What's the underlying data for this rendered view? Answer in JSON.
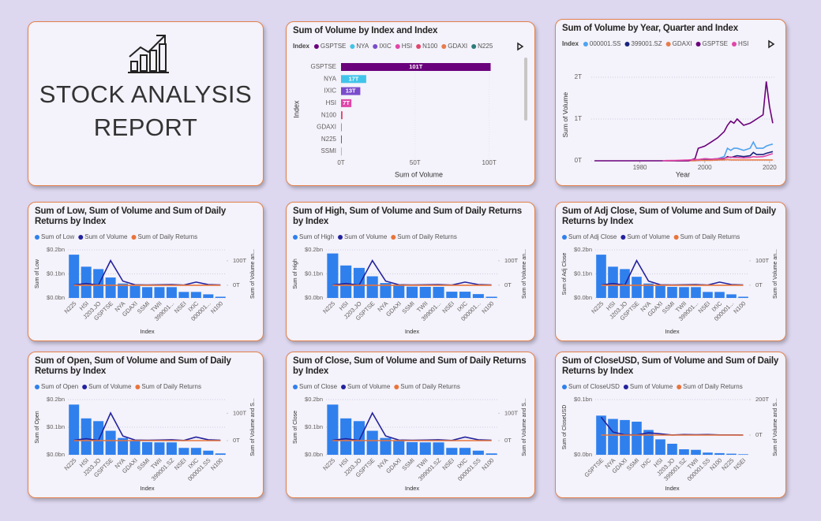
{
  "report": {
    "title_lines": [
      "STOCK ANALYSIS",
      "REPORT"
    ]
  },
  "chart_data": [
    {
      "type": "hbar",
      "title": "Sum of Volume by Index and Index",
      "legend_title": "Index",
      "legend": [
        "GSPTSE",
        "NYA",
        "IXIC",
        "HSI",
        "N100",
        "GDAXI",
        "N225"
      ],
      "categories": [
        "GSPTSE",
        "NYA",
        "IXIC",
        "HSI",
        "N100",
        "GDAXI",
        "N225",
        "SSMI"
      ],
      "values": [
        101,
        17,
        13,
        7,
        1,
        0.5,
        0.3,
        0.1
      ],
      "value_labels": [
        "101T",
        "17T",
        "13T",
        "7T",
        null,
        null,
        null,
        null
      ],
      "colors": [
        "#6a007b",
        "#41c4ea",
        "#7a4ccc",
        "#e046a8",
        "#e0466c",
        "#e87c4a",
        "#2b7b7c",
        "#b9b0e0"
      ],
      "xlim": [
        0,
        105
      ],
      "xticks": [
        {
          "value": 0,
          "label": "0T"
        },
        {
          "value": 50,
          "label": "50T"
        },
        {
          "value": 100,
          "label": "100T"
        }
      ],
      "xlabel": "Sum of Volume",
      "ylabel": "Index"
    },
    {
      "type": "line",
      "title": "Sum of Volume by Year, Quarter and Index",
      "legend_title": "Index",
      "x": [
        1966,
        1975,
        1985,
        1987,
        1988,
        1991,
        1995,
        1997,
        1998,
        2000,
        2002,
        2004,
        2006,
        2007,
        2008,
        2009,
        2010,
        2012,
        2014,
        2015,
        2016,
        2018,
        2019,
        2020,
        2021
      ],
      "series": [
        {
          "name": "000001.SS",
          "color": "#4ea3f0",
          "values": [
            null,
            null,
            null,
            null,
            null,
            0,
            0.01,
            0.02,
            0.02,
            0.05,
            0.04,
            0.05,
            0.1,
            0.3,
            0.25,
            0.3,
            0.3,
            0.25,
            0.3,
            0.45,
            0.3,
            0.3,
            0.35,
            0.38,
            0.4
          ]
        },
        {
          "name": "399001.SZ",
          "color": "#1a237e",
          "values": [
            null,
            null,
            null,
            null,
            null,
            0,
            0.005,
            0.01,
            0.01,
            0.02,
            0.02,
            0.02,
            0.05,
            0.1,
            0.08,
            0.1,
            0.12,
            0.1,
            0.12,
            0.2,
            0.15,
            0.15,
            0.18,
            0.2,
            0.22
          ]
        },
        {
          "name": "GDAXI",
          "color": "#e87c4a",
          "values": [
            null,
            null,
            null,
            null,
            0,
            0,
            0,
            0,
            0.01,
            0.01,
            0.01,
            0.02,
            0.02,
            0.03,
            0.02,
            0.02,
            0.02,
            0.02,
            0.02,
            0.02,
            0.02,
            0.02,
            0.02,
            0.02,
            0.02
          ]
        },
        {
          "name": "GSPTSE",
          "color": "#6a007b",
          "values": [
            0,
            0,
            0,
            0,
            0,
            0,
            0,
            0.05,
            0.3,
            0.35,
            0.45,
            0.55,
            0.7,
            0.85,
            0.95,
            0.9,
            1.0,
            0.85,
            0.9,
            0.95,
            1.0,
            1.1,
            1.9,
            1.3,
            0.9
          ]
        },
        {
          "name": "HSI",
          "color": "#e046a8",
          "values": [
            null,
            null,
            null,
            0,
            0.005,
            0.01,
            0.02,
            0.03,
            0.03,
            0.05,
            0.04,
            0.05,
            0.06,
            0.08,
            0.09,
            0.08,
            0.08,
            0.07,
            0.08,
            0.1,
            0.09,
            0.1,
            0.12,
            0.15,
            0.17
          ]
        }
      ],
      "xlim": [
        1965,
        2021.5
      ],
      "xticks": [
        1980,
        2000,
        2020
      ],
      "ylim": [
        0,
        2.2
      ],
      "yticks": [
        {
          "value": 0,
          "label": "0T"
        },
        {
          "value": 1,
          "label": "1T"
        },
        {
          "value": 2,
          "label": "2T"
        }
      ],
      "xlabel": "Year",
      "ylabel": "Sum of Volume",
      "grid": true
    },
    {
      "type": "combo",
      "title": "Sum of Low, Sum of Volume and Sum of Daily Returns by Index",
      "categories": [
        "N225",
        "HSI",
        "J203.JO",
        "GSPTSE",
        "NYA",
        "GDAXI",
        "SSMI",
        "TWII",
        "399001...",
        "NSEI",
        "IXIC",
        "000001...",
        "N100"
      ],
      "series": [
        {
          "name": "Sum of Low",
          "color": "#2f80ed",
          "kind": "bar",
          "values": [
            0.18,
            0.13,
            0.12,
            0.085,
            0.06,
            0.05,
            0.045,
            0.045,
            0.045,
            0.025,
            0.025,
            0.015,
            0.005
          ]
        },
        {
          "name": "Sum of Volume",
          "color": "#23239e",
          "kind": "line",
          "axis": "y2",
          "values": [
            1,
            7,
            0.5,
            101,
            17,
            2,
            1,
            2,
            3,
            0.5,
            13,
            3,
            1
          ]
        },
        {
          "name": "Sum of Daily Returns",
          "color": "#e8743b",
          "kind": "line",
          "axis": "y2",
          "values": [
            0,
            0,
            0,
            0,
            0,
            0,
            0,
            0,
            0,
            0,
            0,
            0,
            0
          ]
        }
      ],
      "ylim": [
        0,
        0.2
      ],
      "yticks": [
        {
          "value": 0,
          "label": "$0.0bn"
        },
        {
          "value": 0.1,
          "label": "$0.1bn"
        },
        {
          "value": 0.2,
          "label": "$0.2bn"
        }
      ],
      "y2lim": [
        -52,
        145
      ],
      "y2ticks": [
        {
          "value": 0,
          "label": "0T"
        },
        {
          "value": 100,
          "label": "100T"
        }
      ],
      "xlabel": "Index",
      "ylabel": "Sum of Low",
      "y2label": "Sum of Volume an...",
      "grid": true
    },
    {
      "type": "combo",
      "title": "Sum of High, Sum of Volume and Sum of Daily Returns by Index",
      "categories": [
        "N225",
        "HSI",
        "J203.JO",
        "GSPTSE",
        "NYA",
        "GDAXI",
        "SSMI",
        "TWII",
        "399001...",
        "NSEI",
        "IXIC",
        "000001...",
        "N100"
      ],
      "series": [
        {
          "name": "Sum of High",
          "color": "#2f80ed",
          "kind": "bar",
          "values": [
            0.185,
            0.135,
            0.125,
            0.09,
            0.062,
            0.052,
            0.047,
            0.046,
            0.046,
            0.026,
            0.026,
            0.016,
            0.005
          ]
        },
        {
          "name": "Sum of Volume",
          "color": "#23239e",
          "kind": "line",
          "axis": "y2",
          "values": [
            1,
            7,
            0.5,
            101,
            17,
            2,
            1,
            2,
            3,
            0.5,
            13,
            3,
            1
          ]
        },
        {
          "name": "Sum of Daily Returns",
          "color": "#e8743b",
          "kind": "line",
          "axis": "y2",
          "values": [
            0,
            0,
            0,
            0,
            0,
            0,
            0,
            0,
            0,
            0,
            0,
            0,
            0
          ]
        }
      ],
      "ylim": [
        0,
        0.2
      ],
      "yticks": [
        {
          "value": 0,
          "label": "$0.0bn"
        },
        {
          "value": 0.1,
          "label": "$0.1bn"
        },
        {
          "value": 0.2,
          "label": "$0.2bn"
        }
      ],
      "y2lim": [
        -52,
        145
      ],
      "y2ticks": [
        {
          "value": 0,
          "label": "0T"
        },
        {
          "value": 100,
          "label": "100T"
        }
      ],
      "xlabel": "Index",
      "ylabel": "Sum of High",
      "y2label": "Sum of Volume an...",
      "grid": true
    },
    {
      "type": "combo",
      "title": "Sum of Adj Close, Sum of Volume and Sum of Daily Returns by Index",
      "categories": [
        "N225",
        "HSI",
        "J203.JO",
        "GSPTSE",
        "NYA",
        "GDAXI",
        "SSMI",
        "TWII",
        "399001...",
        "NSEI",
        "IXIC",
        "000001...",
        "N100"
      ],
      "series": [
        {
          "name": "Sum of Adj Close",
          "color": "#2f80ed",
          "kind": "bar",
          "values": [
            0.18,
            0.13,
            0.12,
            0.088,
            0.06,
            0.05,
            0.046,
            0.045,
            0.045,
            0.025,
            0.025,
            0.015,
            0.005
          ]
        },
        {
          "name": "Sum of Volume",
          "color": "#23239e",
          "kind": "line",
          "axis": "y2",
          "values": [
            1,
            7,
            0.5,
            101,
            17,
            2,
            1,
            2,
            3,
            0.5,
            13,
            3,
            1
          ]
        },
        {
          "name": "Sum of Daily Returns",
          "color": "#e8743b",
          "kind": "line",
          "axis": "y2",
          "values": [
            0,
            0,
            0,
            0,
            0,
            0,
            0,
            0,
            0,
            0,
            0,
            0,
            0
          ]
        }
      ],
      "ylim": [
        0,
        0.2
      ],
      "yticks": [
        {
          "value": 0,
          "label": "$0.0bn"
        },
        {
          "value": 0.1,
          "label": "$0.1bn"
        },
        {
          "value": 0.2,
          "label": "$0.2bn"
        }
      ],
      "y2lim": [
        -52,
        145
      ],
      "y2ticks": [
        {
          "value": 0,
          "label": "0T"
        },
        {
          "value": 100,
          "label": "100T"
        }
      ],
      "xlabel": "Index",
      "ylabel": "Sum of Adj Close",
      "y2label": "Sum of Volume an...",
      "grid": true
    },
    {
      "type": "combo",
      "title": "Sum of Open, Sum of Volume and Sum of Daily Returns by Index",
      "categories": [
        "N225",
        "HSI",
        "J203.JO",
        "GSPTSE",
        "NYA",
        "GDAXI",
        "SSMI",
        "TWII",
        "399001.SZ",
        "NSEI",
        "IXIC",
        "000001.SS",
        "N100"
      ],
      "series": [
        {
          "name": "Sum of Open",
          "color": "#2f80ed",
          "kind": "bar",
          "values": [
            0.182,
            0.132,
            0.122,
            0.087,
            0.061,
            0.051,
            0.046,
            0.045,
            0.045,
            0.025,
            0.025,
            0.015,
            0.005
          ]
        },
        {
          "name": "Sum of Volume",
          "color": "#23239e",
          "kind": "line",
          "axis": "y2",
          "values": [
            1,
            7,
            0.5,
            101,
            17,
            2,
            1,
            2,
            3,
            0.5,
            13,
            3,
            1
          ]
        },
        {
          "name": "Sum of Daily Returns",
          "color": "#e8743b",
          "kind": "line",
          "axis": "y2",
          "values": [
            0,
            0,
            0,
            0,
            0,
            0,
            0,
            0,
            0,
            0,
            0,
            0,
            0
          ]
        }
      ],
      "ylim": [
        0,
        0.2
      ],
      "yticks": [
        {
          "value": 0,
          "label": "$0.0bn"
        },
        {
          "value": 0.1,
          "label": "$0.1bn"
        },
        {
          "value": 0.2,
          "label": "$0.2bn"
        }
      ],
      "y2lim": [
        -52,
        150
      ],
      "y2ticks": [
        {
          "value": 0,
          "label": "0T"
        },
        {
          "value": 100,
          "label": "100T"
        }
      ],
      "xlabel": "Index",
      "ylabel": "Sum of Open",
      "y2label": "Sum of Volume and S...",
      "grid": true
    },
    {
      "type": "combo",
      "title": "Sum of Close, Sum of Volume and Sum of Daily Returns by Index",
      "categories": [
        "N225",
        "HSI",
        "J203.JO",
        "GSPTSE",
        "NYA",
        "GDAXI",
        "SSMI",
        "TWII",
        "399001.SZ",
        "NSEI",
        "IXIC",
        "000001.SS",
        "N100"
      ],
      "series": [
        {
          "name": "Sum of Close",
          "color": "#2f80ed",
          "kind": "bar",
          "values": [
            0.182,
            0.132,
            0.122,
            0.087,
            0.061,
            0.051,
            0.046,
            0.045,
            0.045,
            0.025,
            0.025,
            0.015,
            0.005
          ]
        },
        {
          "name": "Sum of Volume",
          "color": "#23239e",
          "kind": "line",
          "axis": "y2",
          "values": [
            1,
            7,
            0.5,
            101,
            17,
            2,
            1,
            2,
            3,
            0.5,
            13,
            3,
            1
          ]
        },
        {
          "name": "Sum of Daily Returns",
          "color": "#e8743b",
          "kind": "line",
          "axis": "y2",
          "values": [
            0,
            0,
            0,
            0,
            0,
            0,
            0,
            0,
            0,
            0,
            0,
            0,
            0
          ]
        }
      ],
      "ylim": [
        0,
        0.2
      ],
      "yticks": [
        {
          "value": 0,
          "label": "$0.0bn"
        },
        {
          "value": 0.1,
          "label": "$0.1bn"
        },
        {
          "value": 0.2,
          "label": "$0.2bn"
        }
      ],
      "y2lim": [
        -52,
        150
      ],
      "y2ticks": [
        {
          "value": 0,
          "label": "0T"
        },
        {
          "value": 100,
          "label": "100T"
        }
      ],
      "xlabel": "Index",
      "ylabel": "Sum of Close",
      "y2label": "Sum of Volume and S...",
      "grid": true
    },
    {
      "type": "combo",
      "title": "Sum of CloseUSD, Sum of Volume and Sum of Daily Returns by Index",
      "categories": [
        "GSPTSE",
        "NYA",
        "GDAXI",
        "SSMI",
        "IXIC",
        "HSI",
        "J203.JO",
        "399001.SZ",
        "TWII",
        "000001.SS",
        "N100",
        "N225",
        "NSEI"
      ],
      "series": [
        {
          "name": "Sum of CloseUSD",
          "color": "#2f80ed",
          "kind": "bar",
          "values": [
            0.071,
            0.065,
            0.063,
            0.06,
            0.045,
            0.028,
            0.02,
            0.01,
            0.009,
            0.004,
            0.003,
            0.002,
            0.001
          ]
        },
        {
          "name": "Sum of Volume",
          "color": "#23239e",
          "kind": "line",
          "axis": "y2",
          "values": [
            101,
            17,
            2,
            1,
            13,
            7,
            0.5,
            3,
            2,
            3,
            1,
            1,
            0.5
          ]
        },
        {
          "name": "Sum of Daily Returns",
          "color": "#e8743b",
          "kind": "line",
          "axis": "y2",
          "values": [
            0,
            0,
            0,
            0,
            0,
            0,
            0,
            0,
            0,
            0,
            0,
            0,
            0
          ]
        }
      ],
      "ylim": [
        0,
        0.1
      ],
      "yticks": [
        {
          "value": 0,
          "label": "$0.0bn"
        },
        {
          "value": 0.1,
          "label": "$0.1bn"
        }
      ],
      "y2lim": [
        -111,
        200
      ],
      "y2ticks": [
        {
          "value": 0,
          "label": "0T"
        },
        {
          "value": 200,
          "label": "200T"
        }
      ],
      "xlabel": "Index",
      "ylabel": "Sum of CloseUSD",
      "y2label": "Sum of Volume and S...",
      "grid": true
    }
  ]
}
